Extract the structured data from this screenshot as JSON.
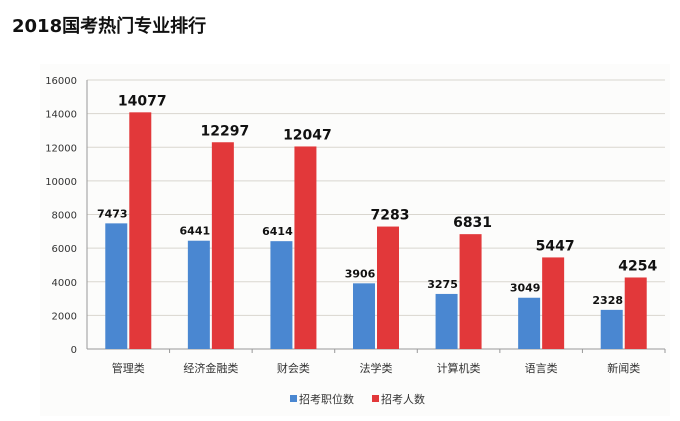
{
  "title": "2018国考热门专业排行",
  "chart_data": {
    "type": "bar",
    "title": "2018国考热门专业排行",
    "categories": [
      "管理类",
      "经济金融类",
      "财会类",
      "法学类",
      "计算机类",
      "语言类",
      "新闻类"
    ],
    "series": [
      {
        "name": "招考职位数",
        "color": "#4a87d1",
        "values": [
          7473,
          6441,
          6414,
          3906,
          3275,
          3049,
          2328
        ]
      },
      {
        "name": "招考人数",
        "color": "#e2383a",
        "values": [
          14077,
          12297,
          12047,
          7283,
          6831,
          5447,
          4254
        ]
      }
    ],
    "yticks": [
      "0",
      "2000",
      "4000",
      "6000",
      "8000",
      "10000",
      "12000",
      "14000",
      "16000"
    ],
    "ylim": [
      0,
      16000
    ],
    "grid": true,
    "legend": "bottom"
  }
}
